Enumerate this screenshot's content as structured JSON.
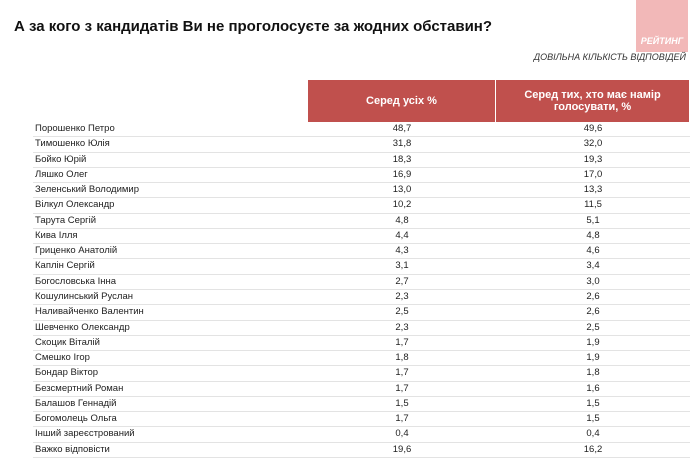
{
  "header": {
    "title": "А за кого з кандидатів Ви не проголосуєте за жодних обставин?",
    "logo": "РЕЙТИНГ",
    "subtitle": "ДОВІЛЬНА КІЛЬКІСТЬ ВІДПОВІДЕЙ"
  },
  "table": {
    "columns": [
      "Серед усіх %",
      "Серед тих, хто має намір голосувати, %"
    ],
    "rows": [
      [
        "Порошенко Петро",
        "48,7",
        "49,6"
      ],
      [
        "Тимошенко Юлія",
        "31,8",
        "32,0"
      ],
      [
        "Бойко Юрій",
        "18,3",
        "19,3"
      ],
      [
        "Ляшко Олег",
        "16,9",
        "17,0"
      ],
      [
        "Зеленський Володимир",
        "13,0",
        "13,3"
      ],
      [
        "Вілкул Олександр",
        "10,2",
        "11,5"
      ],
      [
        "Тарута Сергій",
        "4,8",
        "5,1"
      ],
      [
        "Кива Ілля",
        "4,4",
        "4,8"
      ],
      [
        "Гриценко Анатолій",
        "4,3",
        "4,6"
      ],
      [
        "Каплін Сергій",
        "3,1",
        "3,4"
      ],
      [
        "Богословська Інна",
        "2,7",
        "3,0"
      ],
      [
        "Кошулинський Руслан",
        "2,3",
        "2,6"
      ],
      [
        "Наливайченко Валентин",
        "2,5",
        "2,6"
      ],
      [
        "Шевченко Олександр",
        "2,3",
        "2,5"
      ],
      [
        "Скоцик Віталій",
        "1,7",
        "1,9"
      ],
      [
        "Смешко Ігор",
        "1,8",
        "1,9"
      ],
      [
        "Бондар Віктор",
        "1,7",
        "1,8"
      ],
      [
        "Безсмертний Роман",
        "1,7",
        "1,6"
      ],
      [
        "Балашов Геннадій",
        "1,5",
        "1,5"
      ],
      [
        "Богомолець Ольга",
        "1,7",
        "1,5"
      ],
      [
        "Інший зареєстрований",
        "0,4",
        "0,4"
      ],
      [
        "Важко відповісти",
        "19,6",
        "16,2"
      ]
    ]
  }
}
